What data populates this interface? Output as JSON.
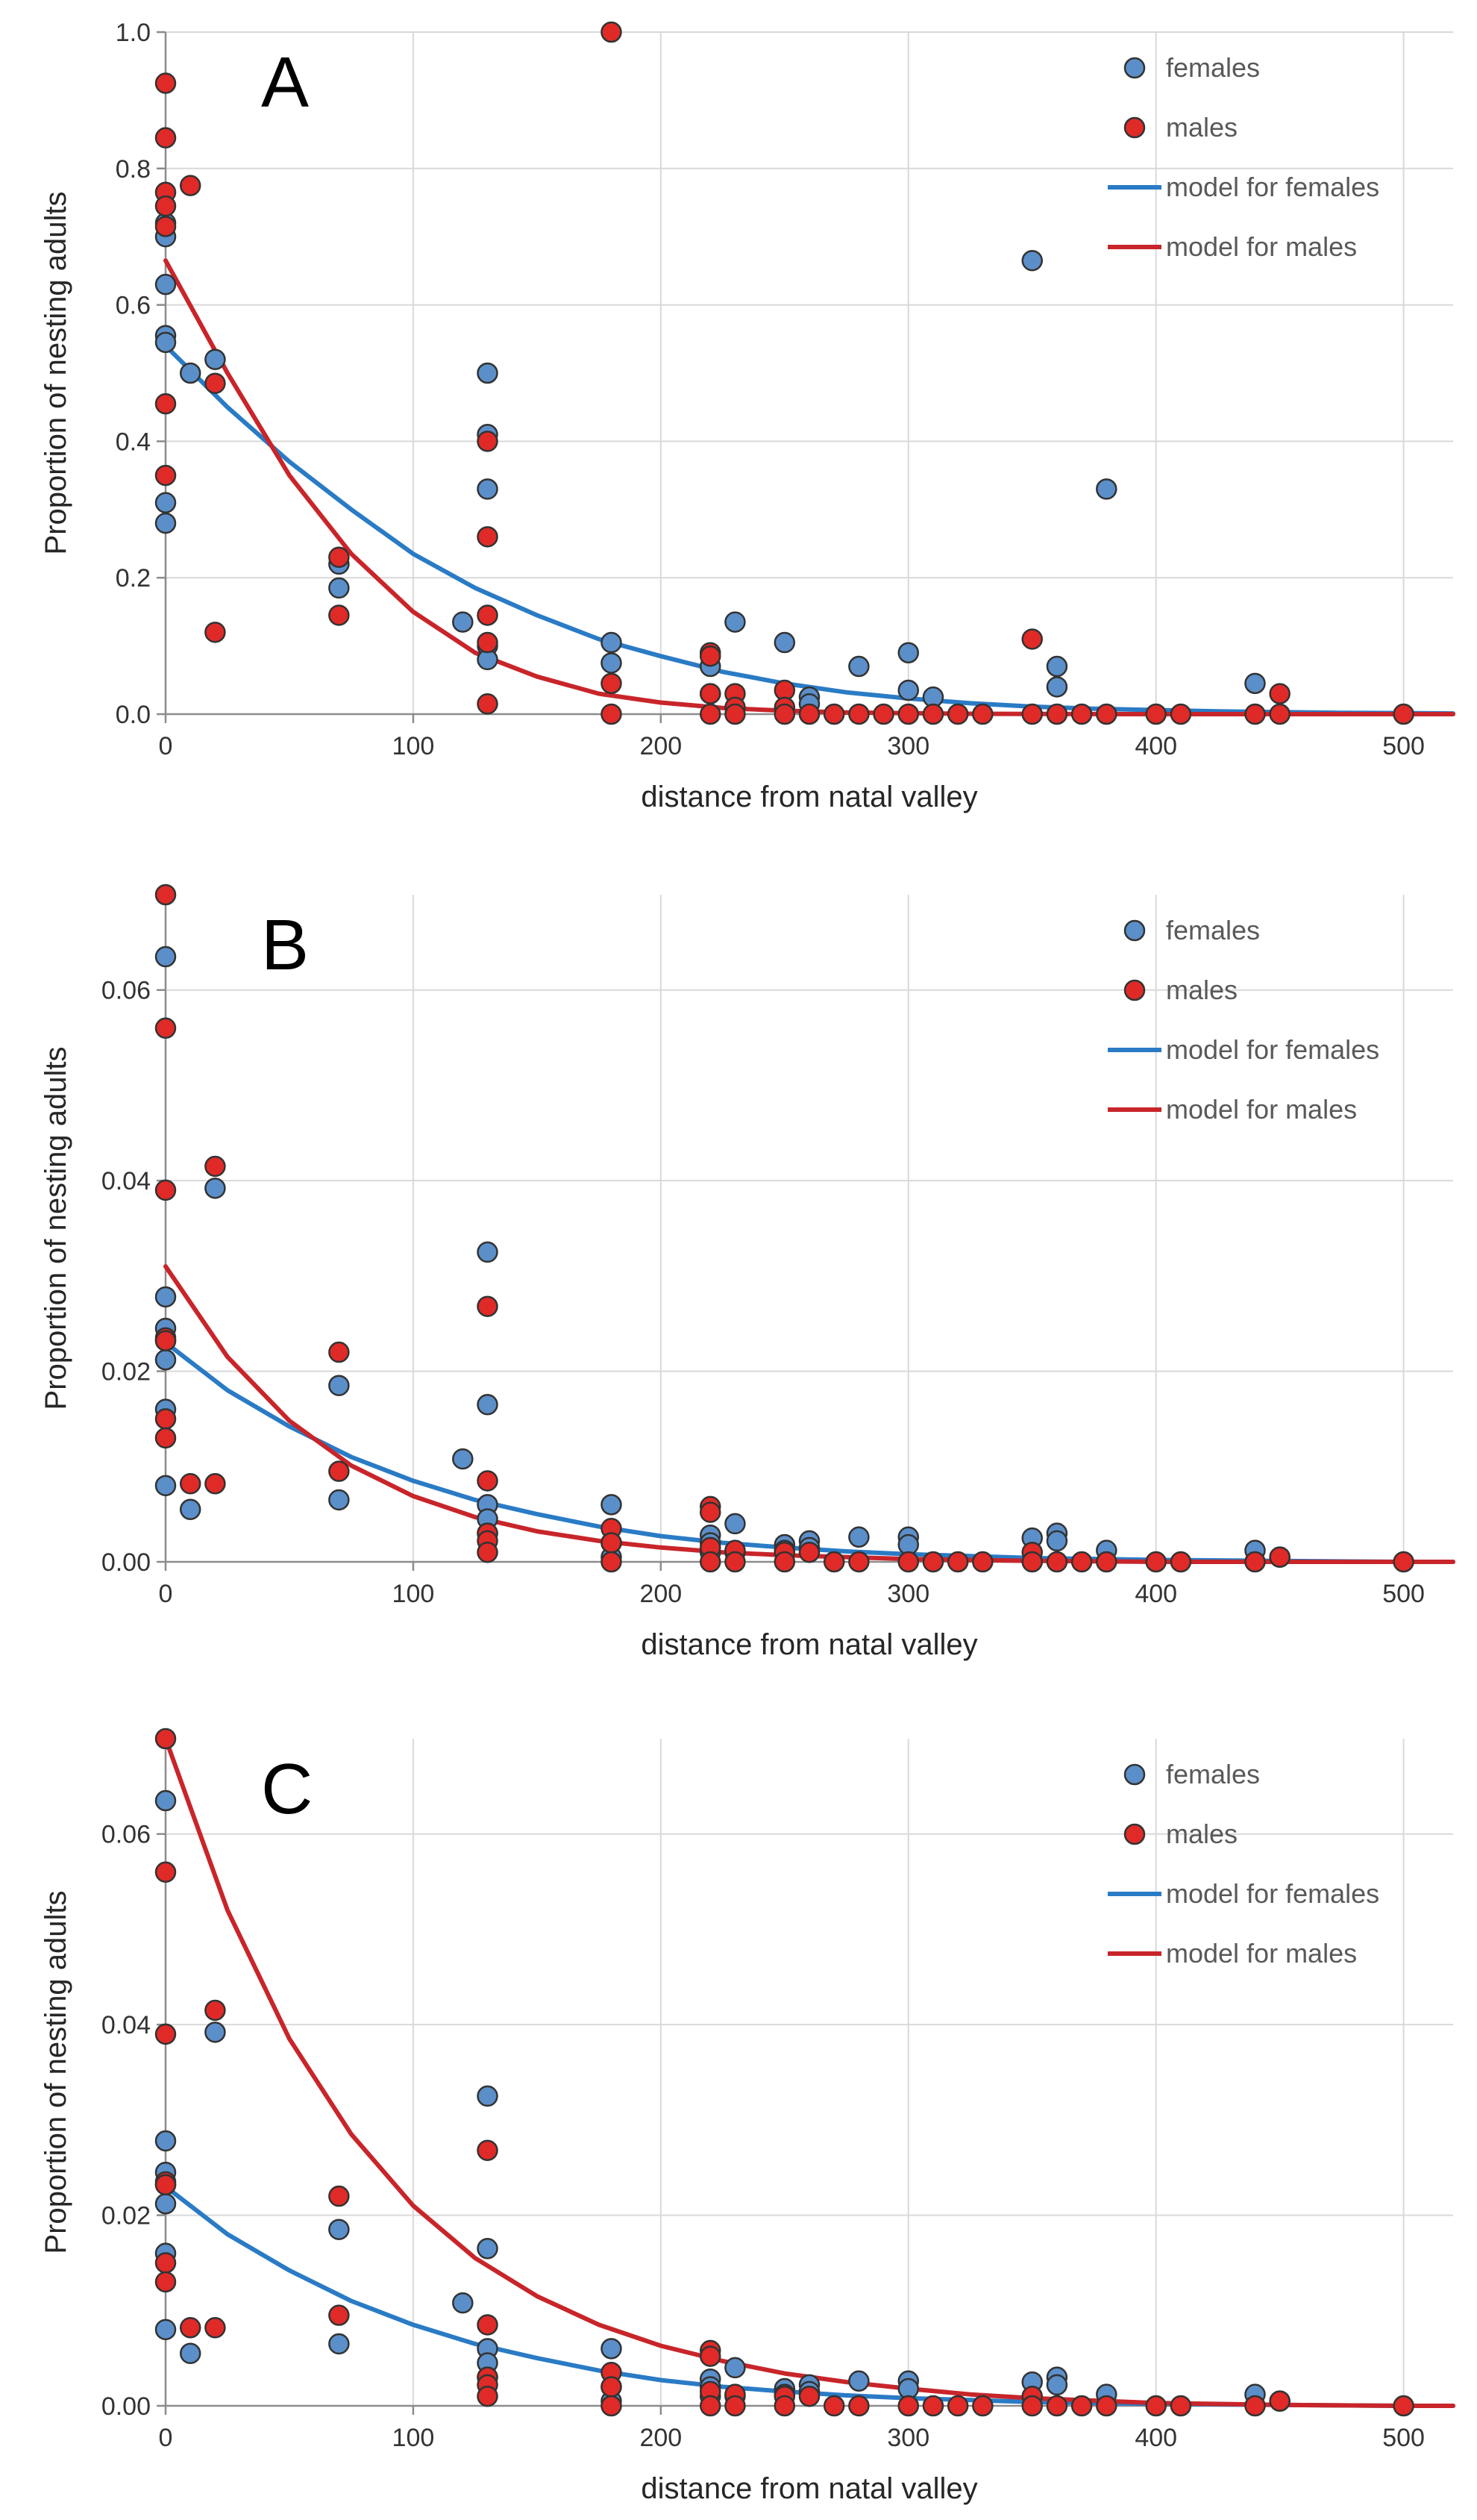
{
  "figure": {
    "colors": {
      "females": "#5b8fc9",
      "males": "#e02a27",
      "model_females": "#2a7bc5",
      "model_males": "#c8252a"
    }
  },
  "chart_data": [
    {
      "type": "scatter",
      "panel": "A",
      "xlabel": "distance from natal valley",
      "ylabel": "Proportion of nesting adults",
      "xlim": [
        0,
        520
      ],
      "ylim": [
        0,
        1.0
      ],
      "xticks": [
        0,
        100,
        200,
        300,
        400,
        500
      ],
      "xtick_labels": [
        "0",
        "100",
        "200",
        "300",
        "400",
        "500"
      ],
      "yticks": [
        0,
        0.2,
        0.4,
        0.6,
        0.8,
        1.0
      ],
      "ytick_labels": [
        "0.0",
        "0.2",
        "0.4",
        "0.6",
        "0.8",
        "1.0"
      ],
      "grid": true,
      "legend": {
        "position": "top-right",
        "entries": [
          "females",
          "males",
          "model for females",
          "model for males"
        ]
      },
      "series": [
        {
          "name": "females",
          "kind": "points",
          "x": [
            0,
            0,
            0,
            0,
            0,
            0,
            0,
            10,
            20,
            70,
            70,
            120,
            130,
            130,
            130,
            130,
            130,
            180,
            180,
            220,
            220,
            230,
            250,
            260,
            260,
            280,
            300,
            300,
            310,
            350,
            360,
            360,
            380,
            440
          ],
          "y": [
            0.7,
            0.63,
            0.555,
            0.545,
            0.31,
            0.28,
            0.72,
            0.5,
            0.52,
            0.22,
            0.185,
            0.135,
            0.5,
            0.41,
            0.33,
            0.1,
            0.08,
            0.105,
            0.075,
            0.07,
            0.03,
            0.135,
            0.105,
            0.025,
            0.015,
            0.07,
            0.09,
            0.035,
            0.025,
            0.665,
            0.07,
            0.04,
            0.33,
            0.045
          ]
        },
        {
          "name": "males",
          "kind": "points",
          "x": [
            0,
            0,
            0,
            0,
            0,
            0,
            0,
            10,
            20,
            20,
            70,
            70,
            130,
            130,
            130,
            130,
            130,
            180,
            180,
            180,
            220,
            220,
            220,
            220,
            230,
            230,
            230,
            250,
            250,
            250,
            260,
            270,
            280,
            290,
            300,
            310,
            320,
            330,
            350,
            350,
            360,
            370,
            380,
            400,
            410,
            440,
            450,
            450,
            500
          ],
          "y": [
            0.925,
            0.845,
            0.765,
            0.745,
            0.715,
            0.455,
            0.35,
            0.775,
            0.485,
            0.12,
            0.23,
            0.145,
            0.4,
            0.26,
            0.145,
            0.105,
            0.015,
            1.0,
            0.045,
            0.0,
            0.09,
            0.085,
            0.03,
            0.0,
            0.03,
            0.01,
            0.0,
            0.035,
            0.01,
            0.0,
            0.0,
            0.0,
            0.0,
            0.0,
            0.0,
            0.0,
            0.0,
            0.0,
            0.11,
            0.0,
            0.0,
            0.0,
            0.0,
            0.0,
            0.0,
            0.0,
            0.03,
            0.0,
            0.0
          ]
        },
        {
          "name": "model for females",
          "kind": "line",
          "x": [
            0,
            25,
            50,
            75,
            100,
            125,
            150,
            175,
            200,
            225,
            250,
            275,
            300,
            325,
            350,
            375,
            400,
            425,
            450,
            475,
            500,
            520
          ],
          "y": [
            0.54,
            0.45,
            0.37,
            0.3,
            0.235,
            0.185,
            0.145,
            0.11,
            0.085,
            0.062,
            0.045,
            0.032,
            0.023,
            0.016,
            0.011,
            0.008,
            0.006,
            0.004,
            0.003,
            0.002,
            0.0015,
            0.001
          ]
        },
        {
          "name": "model for males",
          "kind": "line",
          "x": [
            0,
            25,
            50,
            75,
            100,
            125,
            150,
            175,
            200,
            225,
            250,
            275,
            300,
            325,
            350,
            400,
            450,
            500,
            520
          ],
          "y": [
            0.665,
            0.5,
            0.35,
            0.235,
            0.15,
            0.09,
            0.055,
            0.03,
            0.017,
            0.009,
            0.005,
            0.0025,
            0.0013,
            0.0006,
            0.0003,
            0.0,
            0.0,
            0.0,
            0.0
          ]
        }
      ]
    },
    {
      "type": "scatter",
      "panel": "B",
      "xlabel": "distance from natal valley",
      "ylabel": "Proportion of nesting adults",
      "xlim": [
        0,
        520
      ],
      "ylim": [
        0,
        0.07
      ],
      "xticks": [
        0,
        100,
        200,
        300,
        400,
        500
      ],
      "xtick_labels": [
        "0",
        "100",
        "200",
        "300",
        "400",
        "500"
      ],
      "yticks": [
        0,
        0.02,
        0.04,
        0.06
      ],
      "ytick_labels": [
        "0.00",
        "0.02",
        "0.04",
        "0.06"
      ],
      "grid": true,
      "legend": {
        "position": "top-right",
        "entries": [
          "females",
          "males",
          "model for females",
          "model for males"
        ]
      },
      "series": [
        {
          "name": "females",
          "kind": "points",
          "x": [
            0,
            0,
            0,
            0,
            0,
            0,
            0,
            10,
            20,
            70,
            70,
            120,
            130,
            130,
            130,
            130,
            130,
            180,
            180,
            180,
            220,
            220,
            220,
            230,
            230,
            250,
            250,
            260,
            260,
            280,
            300,
            300,
            350,
            360,
            360,
            380,
            440,
            450
          ],
          "y": [
            0.0635,
            0.0278,
            0.0245,
            0.0232,
            0.0212,
            0.016,
            0.008,
            0.0055,
            0.0392,
            0.0185,
            0.0065,
            0.0108,
            0.0325,
            0.0165,
            0.006,
            0.0045,
            0.003,
            0.006,
            0.002,
            0.0005,
            0.0028,
            0.002,
            0.001,
            0.004,
            0.001,
            0.0018,
            0.0012,
            0.0022,
            0.0015,
            0.0026,
            0.0026,
            0.0018,
            0.0025,
            0.003,
            0.0022,
            0.0012,
            0.0012,
            0.0005
          ]
        },
        {
          "name": "males",
          "kind": "points",
          "x": [
            0,
            0,
            0,
            0,
            0,
            0,
            0,
            10,
            20,
            20,
            70,
            70,
            130,
            130,
            130,
            130,
            130,
            180,
            180,
            180,
            220,
            220,
            220,
            220,
            230,
            230,
            250,
            250,
            260,
            270,
            280,
            300,
            310,
            320,
            330,
            350,
            350,
            360,
            370,
            380,
            400,
            410,
            440,
            450,
            500
          ],
          "y": [
            0.07,
            0.056,
            0.039,
            0.0235,
            0.015,
            0.013,
            0.0232,
            0.0082,
            0.0415,
            0.0082,
            0.022,
            0.0095,
            0.0268,
            0.0085,
            0.003,
            0.0022,
            0.001,
            0.0035,
            0.002,
            0.0,
            0.0058,
            0.0052,
            0.0015,
            0.0,
            0.0012,
            0.0,
            0.001,
            0.0,
            0.001,
            0.0,
            0.0,
            0.0,
            0.0,
            0.0,
            0.0,
            0.001,
            0.0,
            0.0,
            0.0,
            0.0,
            0.0,
            0.0,
            0.0,
            0.0005,
            0.0
          ]
        },
        {
          "name": "model for females",
          "kind": "line",
          "x": [
            0,
            25,
            50,
            75,
            100,
            125,
            150,
            175,
            200,
            225,
            250,
            275,
            300,
            325,
            350,
            400,
            450,
            500,
            520
          ],
          "y": [
            0.023,
            0.018,
            0.0142,
            0.011,
            0.0085,
            0.0065,
            0.005,
            0.0037,
            0.0027,
            0.002,
            0.0015,
            0.0011,
            0.0008,
            0.0006,
            0.0004,
            0.0002,
            0.0001,
            0.0,
            0.0
          ]
        },
        {
          "name": "model for males",
          "kind": "line",
          "x": [
            0,
            25,
            50,
            75,
            100,
            125,
            150,
            175,
            200,
            225,
            250,
            275,
            300,
            325,
            350,
            400,
            450,
            500,
            520
          ],
          "y": [
            0.031,
            0.0215,
            0.0148,
            0.0101,
            0.0069,
            0.0047,
            0.0032,
            0.0022,
            0.0015,
            0.001,
            0.0007,
            0.0005,
            0.0003,
            0.0002,
            0.0001,
            0.0,
            0.0,
            0.0,
            0.0
          ]
        }
      ]
    },
    {
      "type": "scatter",
      "panel": "C",
      "xlabel": "distance from natal valley",
      "ylabel": "Proportion of nesting adults",
      "xlim": [
        0,
        520
      ],
      "ylim": [
        0,
        0.07
      ],
      "xticks": [
        0,
        100,
        200,
        300,
        400,
        500
      ],
      "xtick_labels": [
        "0",
        "100",
        "200",
        "300",
        "400",
        "500"
      ],
      "yticks": [
        0,
        0.02,
        0.04,
        0.06
      ],
      "ytick_labels": [
        "0.00",
        "0.02",
        "0.04",
        "0.06"
      ],
      "grid": true,
      "legend": {
        "position": "top-right",
        "entries": [
          "females",
          "males",
          "model for females",
          "model for males"
        ]
      },
      "series": [
        {
          "name": "females",
          "kind": "points",
          "x": [
            0,
            0,
            0,
            0,
            0,
            0,
            0,
            10,
            20,
            70,
            70,
            120,
            130,
            130,
            130,
            130,
            130,
            180,
            180,
            180,
            220,
            220,
            220,
            230,
            230,
            250,
            250,
            260,
            260,
            280,
            300,
            300,
            350,
            360,
            360,
            380,
            440,
            450
          ],
          "y": [
            0.0635,
            0.0278,
            0.0245,
            0.0232,
            0.0212,
            0.016,
            0.008,
            0.0055,
            0.0392,
            0.0185,
            0.0065,
            0.0108,
            0.0325,
            0.0165,
            0.006,
            0.0045,
            0.003,
            0.006,
            0.002,
            0.0005,
            0.0028,
            0.002,
            0.001,
            0.004,
            0.001,
            0.0018,
            0.0012,
            0.0022,
            0.0015,
            0.0026,
            0.0026,
            0.0018,
            0.0025,
            0.003,
            0.0022,
            0.0012,
            0.0012,
            0.0005
          ]
        },
        {
          "name": "males",
          "kind": "points",
          "x": [
            0,
            0,
            0,
            0,
            0,
            0,
            0,
            10,
            20,
            20,
            70,
            70,
            130,
            130,
            130,
            130,
            130,
            180,
            180,
            180,
            220,
            220,
            220,
            220,
            230,
            230,
            250,
            250,
            260,
            270,
            280,
            300,
            310,
            320,
            330,
            350,
            350,
            360,
            370,
            380,
            400,
            410,
            440,
            450,
            500
          ],
          "y": [
            0.07,
            0.056,
            0.039,
            0.0235,
            0.015,
            0.013,
            0.0232,
            0.0082,
            0.0415,
            0.0082,
            0.022,
            0.0095,
            0.0268,
            0.0085,
            0.003,
            0.0022,
            0.001,
            0.0035,
            0.002,
            0.0,
            0.0058,
            0.0052,
            0.0015,
            0.0,
            0.0012,
            0.0,
            0.001,
            0.0,
            0.001,
            0.0,
            0.0,
            0.0,
            0.0,
            0.0,
            0.0,
            0.001,
            0.0,
            0.0,
            0.0,
            0.0,
            0.0,
            0.0,
            0.0,
            0.0005,
            0.0
          ]
        },
        {
          "name": "model for females",
          "kind": "line",
          "x": [
            0,
            25,
            50,
            75,
            100,
            125,
            150,
            175,
            200,
            225,
            250,
            275,
            300,
            325,
            350,
            400,
            450,
            500,
            520
          ],
          "y": [
            0.023,
            0.018,
            0.0142,
            0.011,
            0.0085,
            0.0065,
            0.005,
            0.0037,
            0.0027,
            0.002,
            0.0015,
            0.0011,
            0.0008,
            0.0006,
            0.0004,
            0.0002,
            0.0001,
            0.0,
            0.0
          ]
        },
        {
          "name": "model for males",
          "kind": "line",
          "x": [
            0,
            25,
            50,
            75,
            100,
            125,
            150,
            175,
            200,
            225,
            250,
            275,
            300,
            325,
            350,
            400,
            450,
            500,
            520
          ],
          "y": [
            0.07,
            0.052,
            0.0385,
            0.0285,
            0.021,
            0.0155,
            0.0115,
            0.0085,
            0.0063,
            0.0047,
            0.0034,
            0.0025,
            0.0018,
            0.0012,
            0.0008,
            0.0003,
            0.0001,
            0.0,
            0.0
          ]
        }
      ]
    }
  ]
}
